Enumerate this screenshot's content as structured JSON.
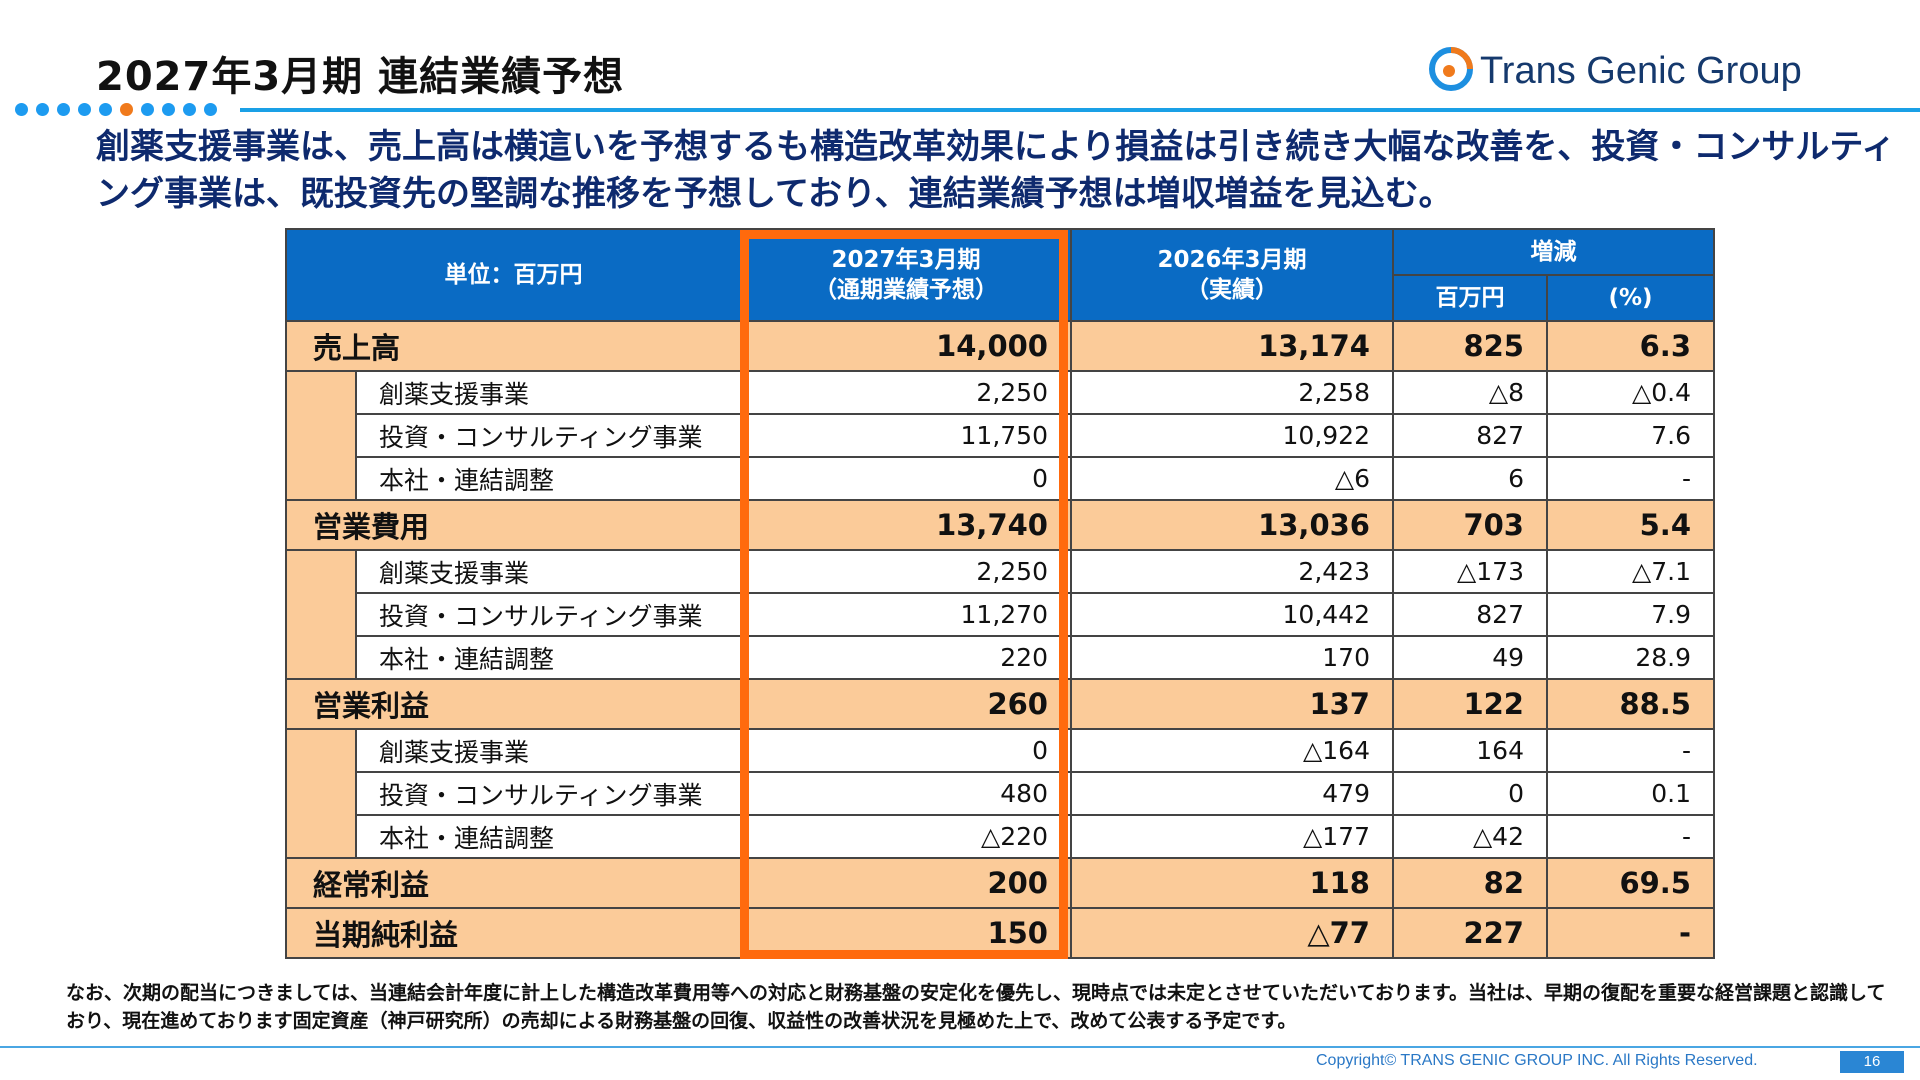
{
  "title": "2027年3月期 連結業績予想",
  "logo": {
    "text": "Trans Genic Group",
    "mark": "tgg-logo-mark"
  },
  "headline": "創薬支援事業は、売上高は横這いを予想するも構造改革効果により損益は引き続き大幅な改善を、投資・コンサルティング事業は、既投資先の堅調な推移を予想しており、連結業績予想は増収増益を見込む。",
  "table": {
    "unit_label": "単位：百万円",
    "col_forecast": "2027年3月期\n（通期業績予想）",
    "col_actual": "2026年3月期\n（実績）",
    "col_change": "増減",
    "col_change_amount": "百万円",
    "col_change_pct": "(%)",
    "rows": [
      {
        "label": "売上高",
        "type": "major",
        "forecast": "14,000",
        "actual": "13,174",
        "diff": "825",
        "pct": "6.3"
      },
      {
        "label": "創薬支援事業",
        "type": "sub",
        "forecast": "2,250",
        "actual": "2,258",
        "diff": "△8",
        "pct": "△0.4"
      },
      {
        "label": "投資・コンサルティング事業",
        "type": "sub",
        "forecast": "11,750",
        "actual": "10,922",
        "diff": "827",
        "pct": "7.6"
      },
      {
        "label": "本社・連結調整",
        "type": "sub",
        "forecast": "0",
        "actual": "△6",
        "diff": "6",
        "pct": "-"
      },
      {
        "label": "営業費用",
        "type": "major",
        "forecast": "13,740",
        "actual": "13,036",
        "diff": "703",
        "pct": "5.4"
      },
      {
        "label": "創薬支援事業",
        "type": "sub",
        "forecast": "2,250",
        "actual": "2,423",
        "diff": "△173",
        "pct": "△7.1"
      },
      {
        "label": "投資・コンサルティング事業",
        "type": "sub",
        "forecast": "11,270",
        "actual": "10,442",
        "diff": "827",
        "pct": "7.9"
      },
      {
        "label": "本社・連結調整",
        "type": "sub",
        "forecast": "220",
        "actual": "170",
        "diff": "49",
        "pct": "28.9"
      },
      {
        "label": "営業利益",
        "type": "major",
        "forecast": "260",
        "actual": "137",
        "diff": "122",
        "pct": "88.5"
      },
      {
        "label": "創薬支援事業",
        "type": "sub",
        "forecast": "0",
        "actual": "△164",
        "diff": "164",
        "pct": "-"
      },
      {
        "label": "投資・コンサルティング事業",
        "type": "sub",
        "forecast": "480",
        "actual": "479",
        "diff": "0",
        "pct": "0.1"
      },
      {
        "label": "本社・連結調整",
        "type": "sub",
        "forecast": "△220",
        "actual": "△177",
        "diff": "△42",
        "pct": "-"
      },
      {
        "label": "経常利益",
        "type": "major",
        "forecast": "200",
        "actual": "118",
        "diff": "82",
        "pct": "69.5"
      },
      {
        "label": "当期純利益",
        "type": "major",
        "forecast": "150",
        "actual": "△77",
        "diff": "227",
        "pct": "-"
      }
    ]
  },
  "note": "なお、次期の配当につきましては、当連結会計年度に計上した構造改革費用等への対応と財務基盤の安定化を優先し、現時点では未定とさせていただいております。当社は、早期の復配を重要な経営課題と認識しており、現在進めております固定資産（神戸研究所）の売却による財務基盤の回復、収益性の改善状況を見極めた上で、改めて公表する予定です。",
  "copyright": "Copyright© TRANS GENIC GROUP INC. All Rights Reserved.",
  "page_number": "16",
  "colors": {
    "header_blue": "#0a6bc4",
    "highlight_orange": "#ff6a0d",
    "major_row": "#fbcb99",
    "headline_navy": "#0e2a6e"
  }
}
